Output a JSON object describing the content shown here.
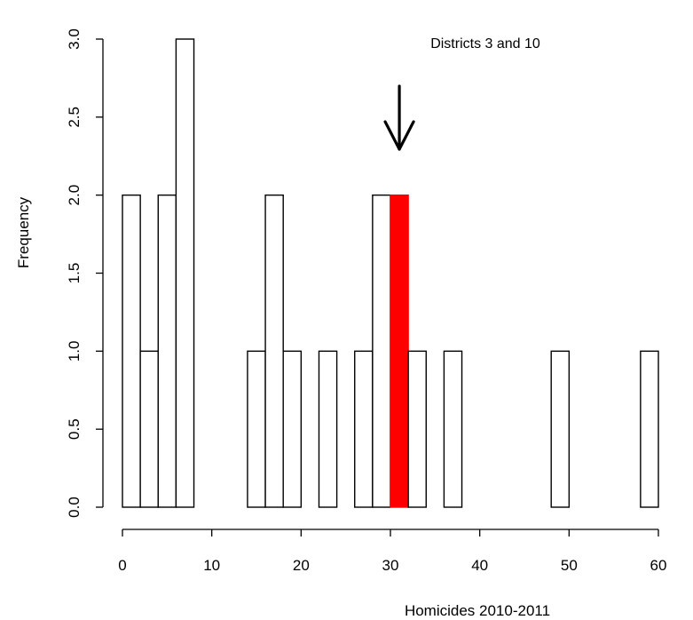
{
  "chart_data": {
    "type": "bar",
    "title": "",
    "xlabel": "Homicides 2010-2011",
    "ylabel": "Frequency",
    "bin_width": 2,
    "xlim": [
      0,
      60
    ],
    "ylim": [
      0,
      3
    ],
    "x_ticks": [
      "0",
      "10",
      "20",
      "30",
      "40",
      "50",
      "60"
    ],
    "y_ticks": [
      "0.0",
      "0.5",
      "1.0",
      "1.5",
      "2.0",
      "2.5",
      "3.0"
    ],
    "bins": [
      {
        "start": 0,
        "end": 2,
        "count": 2
      },
      {
        "start": 2,
        "end": 4,
        "count": 1
      },
      {
        "start": 4,
        "end": 6,
        "count": 2
      },
      {
        "start": 6,
        "end": 8,
        "count": 3
      },
      {
        "start": 8,
        "end": 10,
        "count": 0
      },
      {
        "start": 10,
        "end": 12,
        "count": 0
      },
      {
        "start": 12,
        "end": 14,
        "count": 0
      },
      {
        "start": 14,
        "end": 16,
        "count": 1
      },
      {
        "start": 16,
        "end": 18,
        "count": 2
      },
      {
        "start": 18,
        "end": 20,
        "count": 1
      },
      {
        "start": 20,
        "end": 22,
        "count": 0
      },
      {
        "start": 22,
        "end": 24,
        "count": 1
      },
      {
        "start": 24,
        "end": 26,
        "count": 0
      },
      {
        "start": 26,
        "end": 28,
        "count": 1
      },
      {
        "start": 28,
        "end": 30,
        "count": 2
      },
      {
        "start": 30,
        "end": 32,
        "count": 2,
        "highlight": true
      },
      {
        "start": 32,
        "end": 34,
        "count": 1
      },
      {
        "start": 34,
        "end": 36,
        "count": 0
      },
      {
        "start": 36,
        "end": 38,
        "count": 1
      },
      {
        "start": 38,
        "end": 40,
        "count": 0
      },
      {
        "start": 40,
        "end": 42,
        "count": 0
      },
      {
        "start": 42,
        "end": 44,
        "count": 0
      },
      {
        "start": 44,
        "end": 46,
        "count": 0
      },
      {
        "start": 46,
        "end": 48,
        "count": 0
      },
      {
        "start": 48,
        "end": 50,
        "count": 1
      },
      {
        "start": 50,
        "end": 52,
        "count": 0
      },
      {
        "start": 52,
        "end": 54,
        "count": 0
      },
      {
        "start": 54,
        "end": 56,
        "count": 0
      },
      {
        "start": 56,
        "end": 58,
        "count": 0
      },
      {
        "start": 58,
        "end": 60,
        "count": 1
      }
    ],
    "bar_fill": "#ffffff",
    "highlight_fill": "#ff0000",
    "annotation": {
      "text": "Districts 3 and 10",
      "arrow_points_to_x": 31
    },
    "grid": false,
    "legend": "none"
  }
}
